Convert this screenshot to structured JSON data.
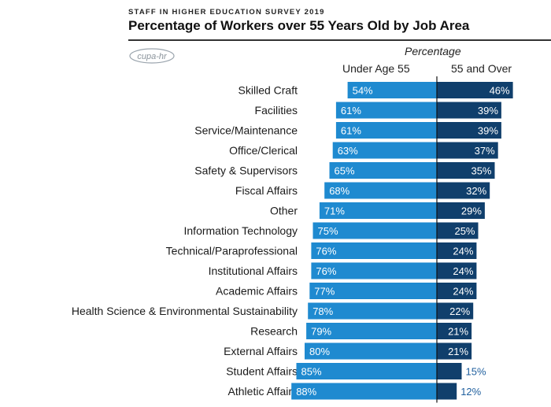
{
  "header": {
    "supertitle": "STAFF IN HIGHER EDUCATION SURVEY 2019",
    "title": "Percentage of Workers over 55 Years Old by Job Area",
    "logo_text": "cupa-hr"
  },
  "colors": {
    "under_55": "#1f8ad0",
    "over_55": "#103f6c",
    "outside_label": "#1f5f9e"
  },
  "chart_data": {
    "type": "bar",
    "orientation": "horizontal-diverging",
    "title": "Percentage of Workers over 55 Years Old by Job Area",
    "axis_title": "Percentage",
    "categories": [
      "Skilled Craft",
      "Facilities",
      "Service/Maintenance",
      "Office/Clerical",
      "Safety & Supervisors",
      "Fiscal Affairs",
      "Other",
      "Information Technology",
      "Technical/Paraprofessional",
      "Institutional Affairs",
      "Academic Affairs",
      "Health Science & Environmental Sustainability",
      "Research",
      "External Affairs",
      "Student Affairs",
      "Athletic Affairs"
    ],
    "series": [
      {
        "name": "Under Age 55",
        "values": [
          54,
          61,
          61,
          63,
          65,
          68,
          71,
          75,
          76,
          76,
          77,
          78,
          79,
          80,
          85,
          88
        ],
        "labels": [
          "54%",
          "61%",
          "61%",
          "63%",
          "65%",
          "68%",
          "71%",
          "75%",
          "76%",
          "76%",
          "77%",
          "78%",
          "79%",
          "80%",
          "85%",
          "88%"
        ]
      },
      {
        "name": "55 and Over",
        "values": [
          46,
          39,
          39,
          37,
          35,
          32,
          29,
          25,
          24,
          24,
          24,
          22,
          21,
          21,
          15,
          12
        ],
        "labels": [
          "46%",
          "39%",
          "39%",
          "37%",
          "35%",
          "32%",
          "29%",
          "25%",
          "24%",
          "24%",
          "24%",
          "22%",
          "21%",
          "21%",
          "15%",
          "12%"
        ]
      }
    ],
    "unit": "%"
  }
}
